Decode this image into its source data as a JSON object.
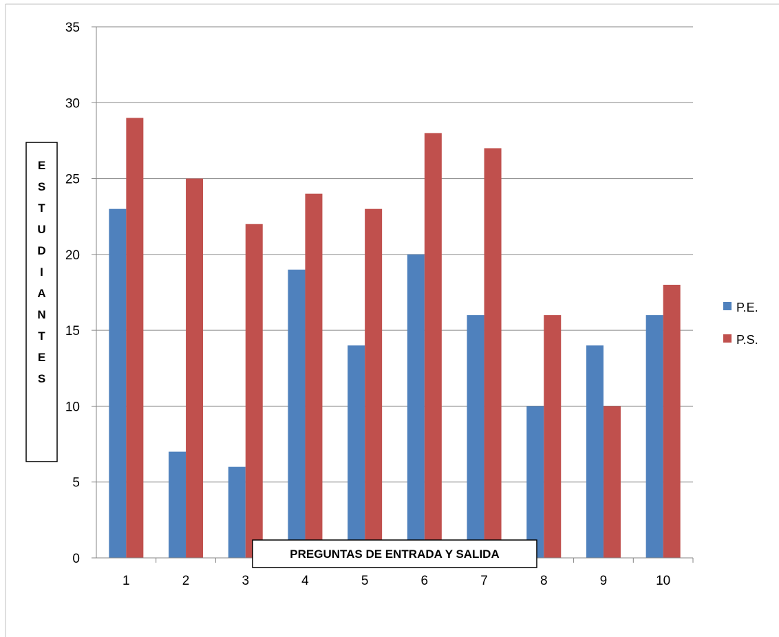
{
  "chart_data": {
    "type": "bar",
    "categories": [
      "1",
      "2",
      "3",
      "4",
      "5",
      "6",
      "7",
      "8",
      "9",
      "10"
    ],
    "series": [
      {
        "name": "P.E.",
        "color": "#4F81BD",
        "values": [
          23,
          7,
          6,
          19,
          14,
          20,
          16,
          10,
          14,
          16
        ]
      },
      {
        "name": "P.S.",
        "color": "#C0504D",
        "values": [
          29,
          25,
          22,
          24,
          23,
          28,
          27,
          16,
          10,
          18
        ]
      }
    ],
    "xlabel": "PREGUNTAS  DE ENTRADA Y SALIDA",
    "ylabel": "ESTUDIANTES",
    "ylim": [
      0,
      35
    ],
    "yticks": [
      "0",
      "5",
      "10",
      "15",
      "20",
      "25",
      "30",
      "35"
    ],
    "grid": true,
    "legend_position": "right"
  }
}
